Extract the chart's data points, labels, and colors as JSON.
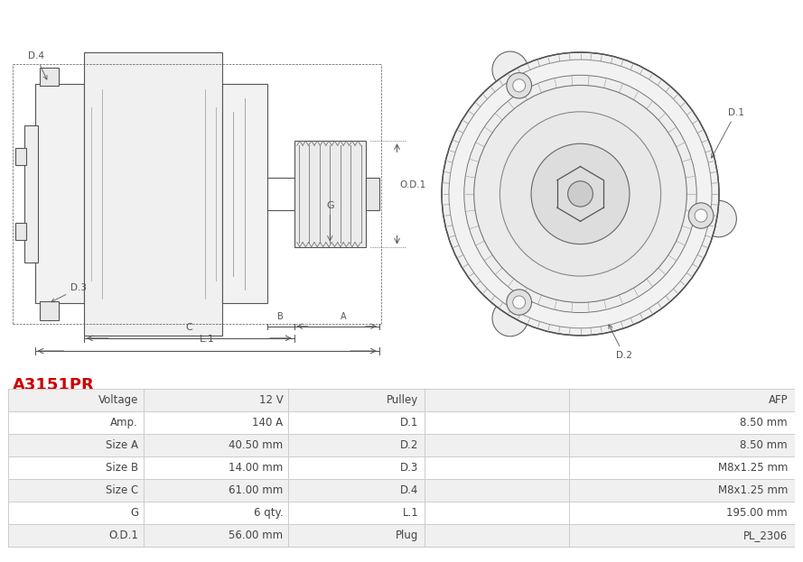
{
  "title": "A3151PR",
  "title_color": "#cc0000",
  "table_data": [
    [
      "Voltage",
      "12 V",
      "Pulley",
      "AFP"
    ],
    [
      "Amp.",
      "140 A",
      "D.1",
      "8.50 mm"
    ],
    [
      "Size A",
      "40.50 mm",
      "D.2",
      "8.50 mm"
    ],
    [
      "Size B",
      "14.00 mm",
      "D.3",
      "M8x1.25 mm"
    ],
    [
      "Size C",
      "61.00 mm",
      "D.4",
      "M8x1.25 mm"
    ],
    [
      "G",
      "6 qty.",
      "L.1",
      "195.00 mm"
    ],
    [
      "O.D.1",
      "56.00 mm",
      "Plug",
      "PL_2306"
    ]
  ],
  "row_bg_odd": "#f0f0f0",
  "row_bg_even": "#ffffff",
  "border_color": "#cccccc",
  "text_color": "#444444",
  "background_color": "#ffffff",
  "diagram_bg": "#ffffff",
  "line_color": "#555555",
  "dim_color": "#555555"
}
